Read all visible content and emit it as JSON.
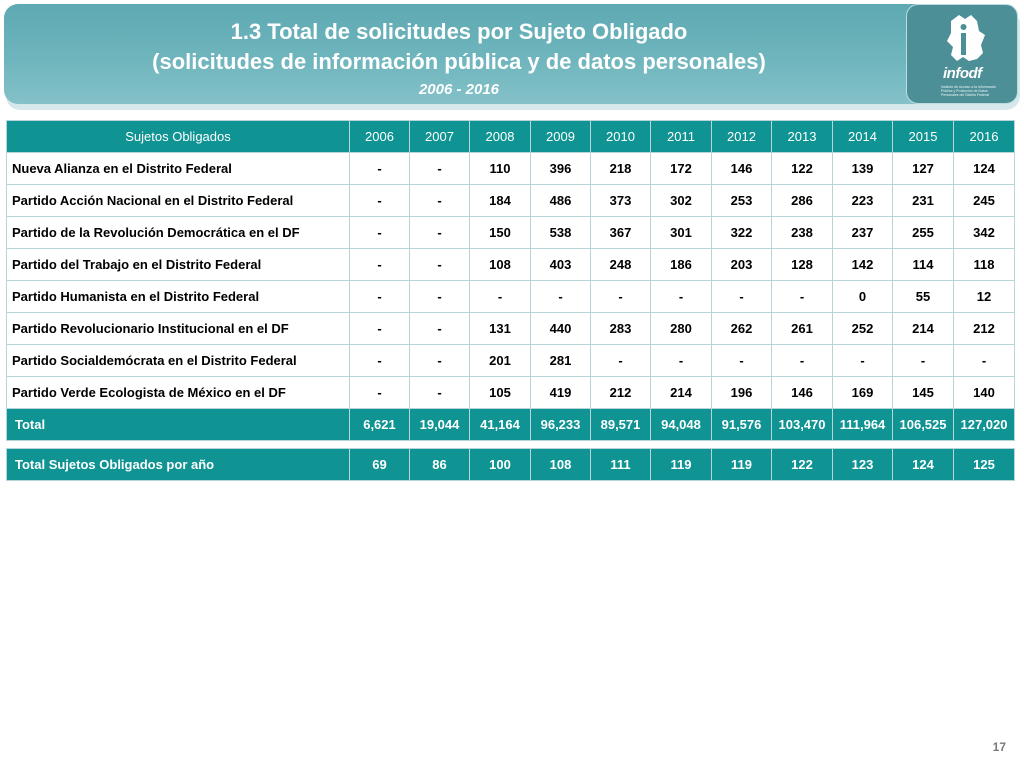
{
  "header": {
    "title_line1": "1.3 Total de solicitudes por Sujeto Obligado",
    "title_line2": "(solicitudes de información pública y de datos personales)",
    "subtitle": "2006 - 2016"
  },
  "logo": {
    "icon": "infodf-logo-icon",
    "brand_text": "infodf",
    "tagline": "Instituto de Acceso a la Información Pública y Protección de Datos Personales del Distrito Federal"
  },
  "table": {
    "header_label": "Sujetos Obligados",
    "years": [
      "2006",
      "2007",
      "2008",
      "2009",
      "2010",
      "2011",
      "2012",
      "2013",
      "2014",
      "2015",
      "2016"
    ],
    "rows": [
      {
        "name": "Nueva Alianza en el Distrito Federal",
        "values": [
          "-",
          "-",
          "110",
          "396",
          "218",
          "172",
          "146",
          "122",
          "139",
          "127",
          "124"
        ]
      },
      {
        "name": "Partido Acción Nacional en el Distrito Federal",
        "values": [
          "-",
          "-",
          "184",
          "486",
          "373",
          "302",
          "253",
          "286",
          "223",
          "231",
          "245"
        ]
      },
      {
        "name": "Partido de la Revolución Democrática en el DF",
        "values": [
          "-",
          "-",
          "150",
          "538",
          "367",
          "301",
          "322",
          "238",
          "237",
          "255",
          "342"
        ]
      },
      {
        "name": "Partido del Trabajo en el Distrito Federal",
        "values": [
          "-",
          "-",
          "108",
          "403",
          "248",
          "186",
          "203",
          "128",
          "142",
          "114",
          "118"
        ]
      },
      {
        "name": "Partido Humanista en el Distrito Federal",
        "values": [
          "-",
          "-",
          "-",
          "-",
          "-",
          "-",
          "-",
          "-",
          "0",
          "55",
          "12"
        ]
      },
      {
        "name": "Partido Revolucionario Institucional en el DF",
        "values": [
          "-",
          "-",
          "131",
          "440",
          "283",
          "280",
          "262",
          "261",
          "252",
          "214",
          "212"
        ]
      },
      {
        "name": "Partido Socialdemócrata en el Distrito Federal",
        "values": [
          "-",
          "-",
          "201",
          "281",
          "-",
          "-",
          "-",
          "-",
          "-",
          "-",
          "-"
        ]
      },
      {
        "name": "Partido Verde Ecologista de México en el DF",
        "values": [
          "-",
          "-",
          "105",
          "419",
          "212",
          "214",
          "196",
          "146",
          "169",
          "145",
          "140"
        ]
      }
    ],
    "total": {
      "name": "Total",
      "values": [
        "6,621",
        "19,044",
        "41,164",
        "96,233",
        "89,571",
        "94,048",
        "91,576",
        "103,470",
        "111,964",
        "106,525",
        "127,020"
      ]
    },
    "total_per_year": {
      "name": "Total  Sujetos Obligados por año",
      "values": [
        "69",
        "86",
        "100",
        "108",
        "111",
        "119",
        "119",
        "122",
        "123",
        "124",
        "125"
      ]
    }
  },
  "footer": {
    "page_number": "17"
  },
  "colors": {
    "header_teal": "#6fb5bd",
    "table_teal": "#0f9393",
    "logo_dark": "#4d8f97"
  }
}
